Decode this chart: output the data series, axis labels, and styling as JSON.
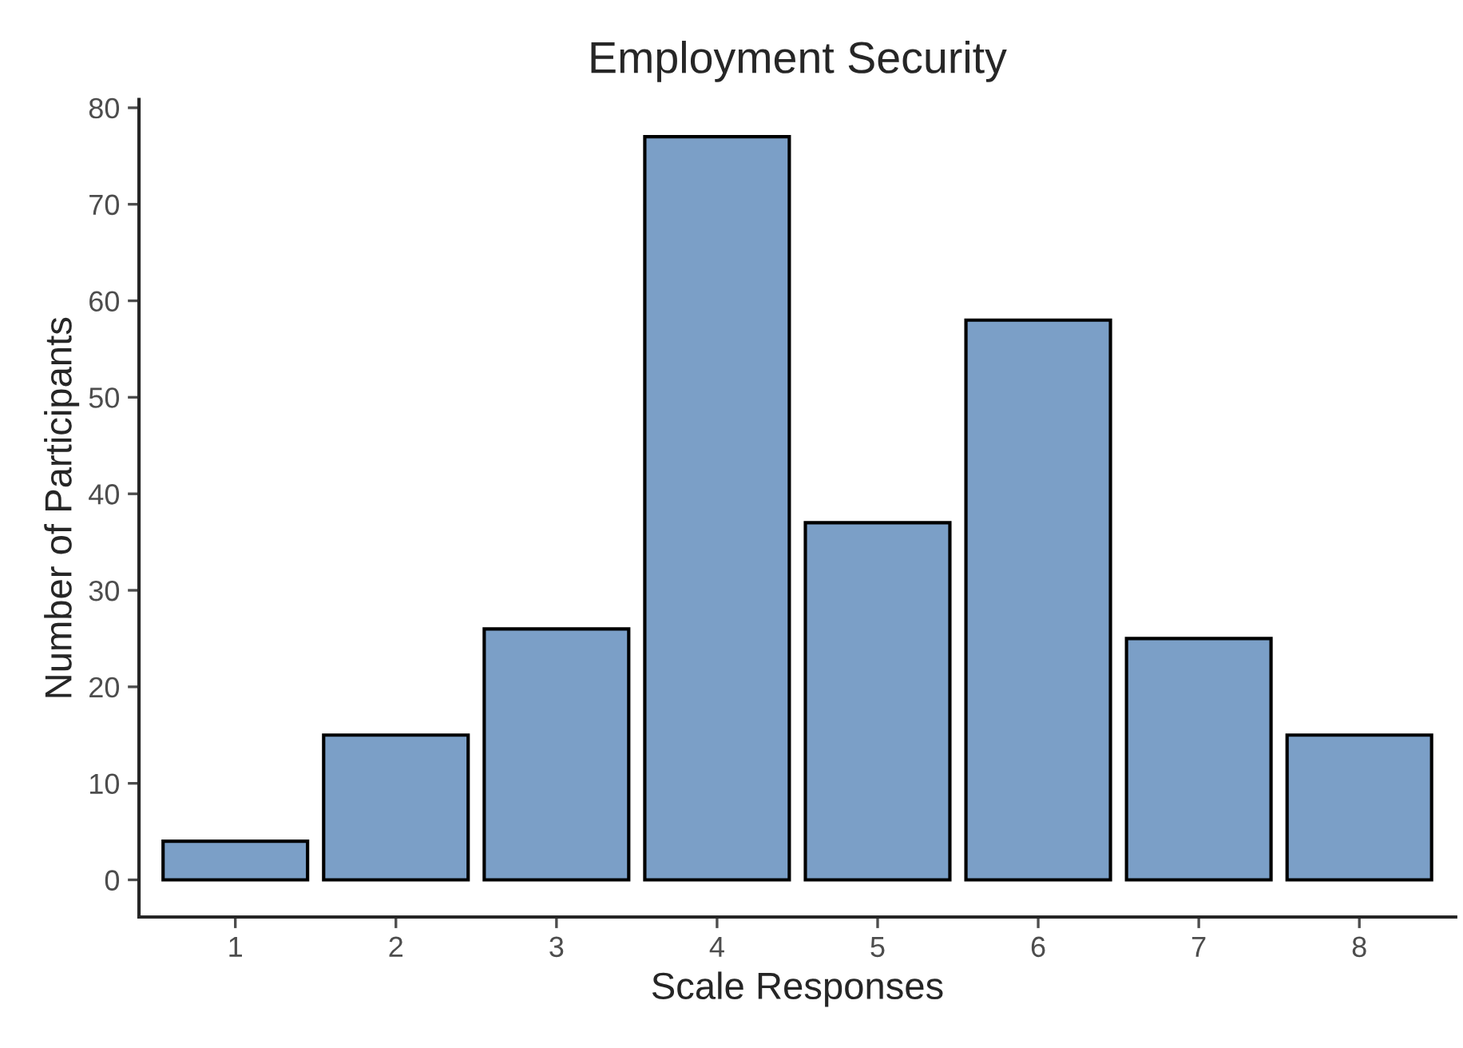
{
  "chart_data": {
    "type": "bar",
    "title": "Employment Security",
    "xlabel": "Scale Responses",
    "ylabel": "Number of Participants",
    "categories": [
      "1",
      "2",
      "3",
      "4",
      "5",
      "6",
      "7",
      "8"
    ],
    "values": [
      4,
      15,
      26,
      77,
      37,
      58,
      25,
      15
    ],
    "color": "#7b9fc7",
    "ylim": [
      -3.85,
      80.85
    ],
    "yticks": [
      0,
      10,
      20,
      30,
      40,
      50,
      60,
      70,
      80
    ],
    "grid": false,
    "legend": false
  }
}
